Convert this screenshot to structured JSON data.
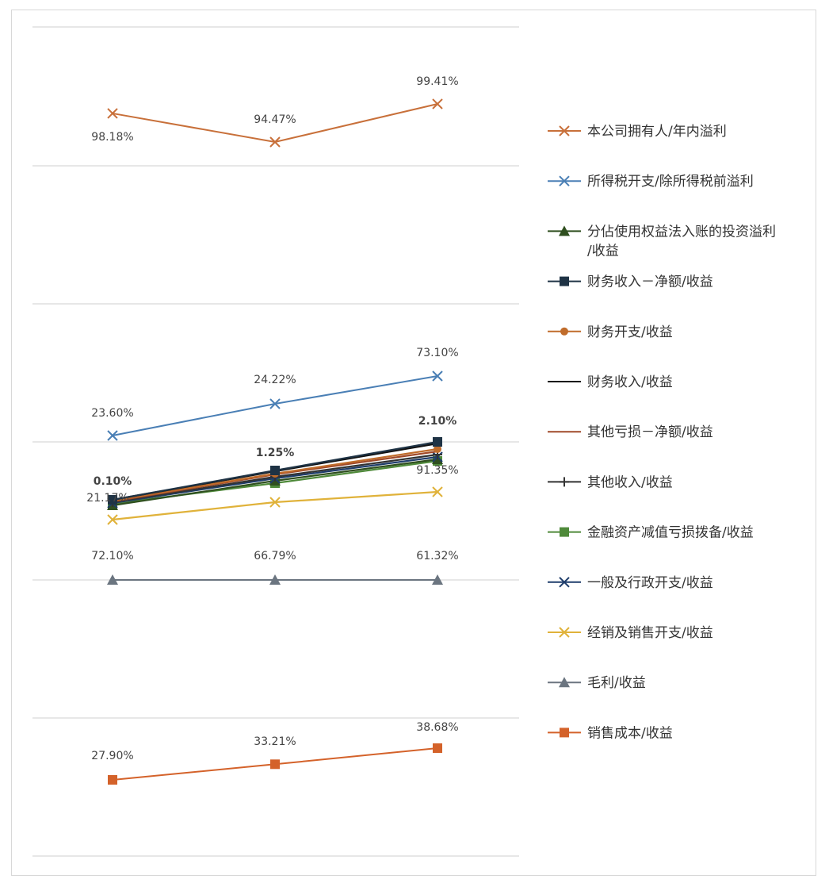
{
  "chart_data": {
    "type": "line",
    "categories": [
      "",
      "",
      ""
    ],
    "title": "",
    "xlabel": "",
    "ylabel": "",
    "grid": true,
    "legend": "right",
    "series": [
      {
        "name": "本公司拥有人/年内溢利",
        "values": [
          98.18,
          94.47,
          99.41
        ],
        "labels": [
          "98.18%",
          "94.47%",
          "99.41%"
        ],
        "color": "#c8703a",
        "marker": "x"
      },
      {
        "name": "所得税开支/除所得税前溢利",
        "values": [
          23.6,
          24.22,
          73.1
        ],
        "labels": [
          "23.60%",
          "24.22%",
          "73.10%"
        ],
        "color": "#4a7fb5",
        "marker": "x"
      },
      {
        "name": "分佔使用权益法入账的投资溢利/收益",
        "values": [
          null,
          null,
          null
        ],
        "labels": [],
        "color": "#2f4f1f",
        "marker": "triangle"
      },
      {
        "name": "财务收入－净额/收益",
        "values": [
          null,
          null,
          null
        ],
        "labels": [
          "0.10%",
          "1.25%",
          "2.10%"
        ],
        "color": "#1f3345",
        "marker": "square"
      },
      {
        "name": "财务开支/收益",
        "values": [
          null,
          null,
          null
        ],
        "labels": [],
        "color": "#c06c2b",
        "marker": "circle"
      },
      {
        "name": "财务收入/收益",
        "values": [
          null,
          null,
          null
        ],
        "labels": [],
        "color": "#111111",
        "marker": "none"
      },
      {
        "name": "其他亏损－净额/收益",
        "values": [
          null,
          null,
          null
        ],
        "labels": [],
        "color": "#a04a2a",
        "marker": "none"
      },
      {
        "name": "其他收入/收益",
        "values": [
          null,
          null,
          null
        ],
        "labels": [],
        "color": "#333333",
        "marker": "plus"
      },
      {
        "name": "金融资产减值亏损拨备/收益",
        "values": [
          null,
          null,
          null
        ],
        "labels": [],
        "color": "#4f8a3a",
        "marker": "square"
      },
      {
        "name": "一般及行政开支/收益",
        "values": [
          null,
          null,
          null
        ],
        "labels": [
          "21.17%",
          "",
          "91.35%"
        ],
        "color": "#1f3d6b",
        "marker": "x"
      },
      {
        "name": "经销及销售开支/收益",
        "values": [
          null,
          null,
          null
        ],
        "labels": [],
        "color": "#e0b23a",
        "marker": "x"
      },
      {
        "name": "毛利/收益",
        "values": [
          72.1,
          66.79,
          61.32
        ],
        "labels": [
          "72.10%",
          "66.79%",
          "61.32%"
        ],
        "color": "#6b7580",
        "marker": "triangle"
      },
      {
        "name": "销售成本/收益",
        "values": [
          27.9,
          33.21,
          38.68
        ],
        "labels": [
          "27.90%",
          "33.21%",
          "38.68%"
        ],
        "color": "#d4622a",
        "marker": "square"
      }
    ]
  }
}
